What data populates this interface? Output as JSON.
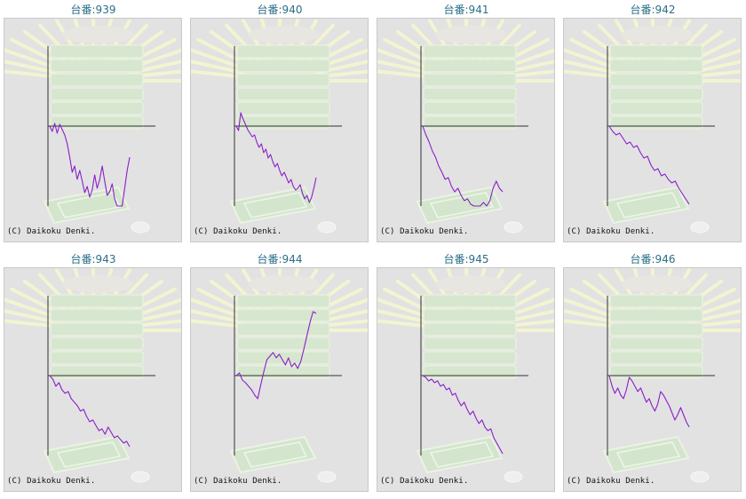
{
  "theme": {
    "line_color": "#8a1fc9",
    "axis_color": "#333333",
    "panel_bg": "#e2e2e2",
    "title_color": "#2a6f87"
  },
  "chart_data": [
    {
      "type": "line",
      "title": "台番:939",
      "copyright": "(C) Daikoku Denki.",
      "y": [
        0,
        -6,
        3,
        -8,
        2,
        -4,
        -10,
        -20,
        -35,
        -52,
        -45,
        -60,
        -50,
        -62,
        -75,
        -68,
        -80,
        -72,
        -55,
        -70,
        -60,
        -45,
        -62,
        -78,
        -74,
        -65,
        -82,
        -95,
        -100,
        -90,
        -70,
        -50,
        -35
      ]
    },
    {
      "type": "line",
      "title": "台番:940",
      "copyright": "(C) Daikoku Denki.",
      "y": [
        0,
        -5,
        15,
        8,
        2,
        -4,
        -8,
        -12,
        -10,
        -18,
        -24,
        -20,
        -30,
        -26,
        -36,
        -32,
        -40,
        -46,
        -42,
        -50,
        -56,
        -52,
        -58,
        -64,
        -60,
        -68,
        -72,
        -70,
        -66,
        -76,
        -82,
        -78,
        -86,
        -80,
        -70,
        -58
      ]
    },
    {
      "type": "line",
      "title": "台番:941",
      "copyright": "(C) Daikoku Denki.",
      "y": [
        0,
        -10,
        -18,
        -28,
        -35,
        -45,
        -52,
        -60,
        -58,
        -68,
        -74,
        -70,
        -78,
        -84,
        -82,
        -88,
        -92,
        -96,
        -94,
        -86,
        -90,
        -84,
        -70,
        -62,
        -70,
        -74
      ]
    },
    {
      "type": "line",
      "title": "台番:942",
      "copyright": "(C) Daikoku Denki.",
      "y": [
        0,
        -6,
        -10,
        -8,
        -14,
        -20,
        -18,
        -24,
        -22,
        -30,
        -36,
        -34,
        -44,
        -50,
        -48,
        -56,
        -54,
        -60,
        -64,
        -62,
        -70,
        -76,
        -82,
        -88
      ]
    },
    {
      "type": "line",
      "title": "台番:943",
      "copyright": "(C) Daikoku Denki.",
      "y": [
        0,
        -4,
        -12,
        -8,
        -16,
        -20,
        -18,
        -26,
        -30,
        -34,
        -40,
        -38,
        -46,
        -52,
        -50,
        -56,
        -62,
        -60,
        -66,
        -58,
        -64,
        -70,
        -68,
        -72,
        -76,
        -74,
        -80
      ]
    },
    {
      "type": "line",
      "title": "台番:944",
      "copyright": "(C) Daikoku Denki.",
      "y": [
        0,
        3,
        -5,
        -8,
        -12,
        -16,
        -22,
        -26,
        -10,
        5,
        18,
        22,
        26,
        20,
        24,
        18,
        12,
        20,
        10,
        14,
        8,
        16,
        30,
        45,
        60,
        72,
        70
      ]
    },
    {
      "type": "line",
      "title": "台番:945",
      "copyright": "(C) Daikoku Denki.",
      "y": [
        0,
        -2,
        -6,
        -4,
        -8,
        -6,
        -12,
        -10,
        -16,
        -14,
        -22,
        -20,
        -28,
        -34,
        -30,
        -38,
        -44,
        -40,
        -48,
        -54,
        -50,
        -58,
        -62,
        -60,
        -70,
        -76,
        -82,
        -88
      ]
    },
    {
      "type": "line",
      "title": "台番:946",
      "copyright": "(C) Daikoku Denki.",
      "y": [
        0,
        -12,
        -20,
        -14,
        -22,
        -26,
        -16,
        -2,
        -6,
        -12,
        -18,
        -14,
        -22,
        -30,
        -26,
        -34,
        -40,
        -32,
        -18,
        -22,
        -28,
        -34,
        -42,
        -50,
        -44,
        -36,
        -44,
        -52,
        -58
      ]
    }
  ]
}
